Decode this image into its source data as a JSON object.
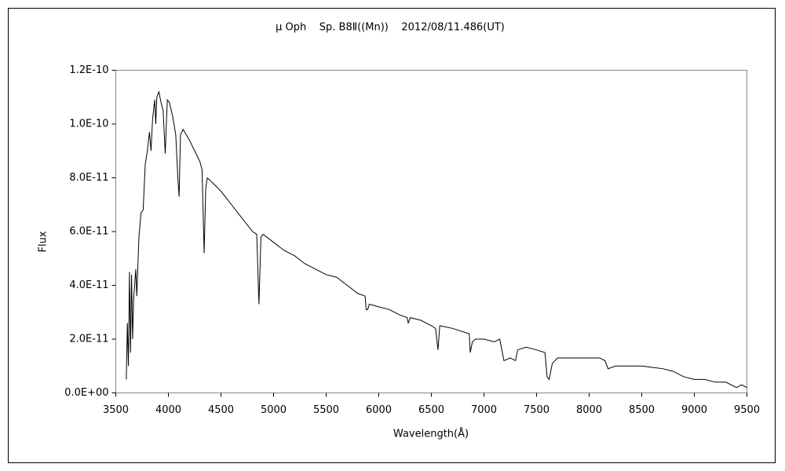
{
  "chart_data": {
    "type": "line",
    "title": "μ Oph    Sp. B8Ⅱ((Mn))    2012/08/11.486(UT)",
    "x_label": "Wavelength(Å)",
    "y_label": "Flux",
    "color": "#000000",
    "grid": false,
    "xlim": [
      3500,
      9500
    ],
    "xticks": [
      3500,
      4000,
      4500,
      5000,
      5500,
      6000,
      6500,
      7000,
      7500,
      8000,
      8500,
      9000,
      9500
    ],
    "ylim": [
      0,
      1.2e-10
    ],
    "yticks": [
      {
        "value": 0,
        "label": "0.0E+00"
      },
      {
        "value": 2e-11,
        "label": "2.0E-11"
      },
      {
        "value": 4e-11,
        "label": "4.0E-11"
      },
      {
        "value": 6e-11,
        "label": "6.0E-11"
      },
      {
        "value": 8e-11,
        "label": "8.0E-11"
      },
      {
        "value": 1e-10,
        "label": "1.0E-10"
      },
      {
        "value": 1.2e-10,
        "label": "1.2E-10"
      }
    ],
    "x": [
      3600,
      3610,
      3620,
      3630,
      3640,
      3650,
      3660,
      3670,
      3690,
      3700,
      3720,
      3740,
      3760,
      3780,
      3800,
      3820,
      3835,
      3850,
      3870,
      3880,
      3890,
      3910,
      3930,
      3950,
      3970,
      3990,
      4010,
      4040,
      4070,
      4090,
      4102,
      4115,
      4140,
      4200,
      4250,
      4300,
      4320,
      4340,
      4355,
      4370,
      4450,
      4500,
      4600,
      4700,
      4800,
      4840,
      4861,
      4880,
      4900,
      5000,
      5100,
      5200,
      5300,
      5400,
      5500,
      5600,
      5700,
      5800,
      5870,
      5880,
      5895,
      5910,
      6000,
      6100,
      6200,
      6270,
      6280,
      6300,
      6400,
      6500,
      6540,
      6563,
      6580,
      6700,
      6860,
      6870,
      6890,
      6920,
      7000,
      7100,
      7150,
      7190,
      7250,
      7300,
      7320,
      7400,
      7500,
      7580,
      7600,
      7620,
      7650,
      7700,
      7800,
      7900,
      8000,
      8100,
      8150,
      8180,
      8250,
      8400,
      8500,
      8600,
      8700,
      8800,
      8900,
      9000,
      9100,
      9200,
      9300,
      9400,
      9450,
      9500
    ],
    "values": [
      5e-12,
      2.6e-11,
      1e-11,
      4.5e-11,
      1.5e-11,
      4.4e-11,
      2e-11,
      3.5e-11,
      4.6e-11,
      3.6e-11,
      5.8e-11,
      6.7e-11,
      6.8e-11,
      8.5e-11,
      9e-11,
      9.7e-11,
      9e-11,
      1.02e-10,
      1.09e-10,
      1e-10,
      1.1e-10,
      1.12e-10,
      1.08e-10,
      1.05e-10,
      8.9e-11,
      1.09e-10,
      1.08e-10,
      1.03e-10,
      9.6e-11,
      8e-11,
      7.3e-11,
      9.6e-11,
      9.8e-11,
      9.4e-11,
      9e-11,
      8.6e-11,
      8.3e-11,
      5.2e-11,
      7.6e-11,
      8e-11,
      7.7e-11,
      7.5e-11,
      7e-11,
      6.5e-11,
      6e-11,
      5.9e-11,
      3.3e-11,
      5.8e-11,
      5.9e-11,
      5.6e-11,
      5.3e-11,
      5.1e-11,
      4.8e-11,
      4.6e-11,
      4.4e-11,
      4.3e-11,
      4e-11,
      3.7e-11,
      3.6e-11,
      3.1e-11,
      3.1e-11,
      3.3e-11,
      3.2e-11,
      3.1e-11,
      2.9e-11,
      2.8e-11,
      2.6e-11,
      2.8e-11,
      2.7e-11,
      2.5e-11,
      2.4e-11,
      1.6e-11,
      2.5e-11,
      2.4e-11,
      2.2e-11,
      1.5e-11,
      1.9e-11,
      2e-11,
      2e-11,
      1.9e-11,
      2e-11,
      1.2e-11,
      1.3e-11,
      1.2e-11,
      1.6e-11,
      1.7e-11,
      1.6e-11,
      1.5e-11,
      6e-12,
      5e-12,
      1.1e-11,
      1.3e-11,
      1.3e-11,
      1.3e-11,
      1.3e-11,
      1.3e-11,
      1.2e-11,
      9e-12,
      1e-11,
      1e-11,
      1e-11,
      9.5e-12,
      9e-12,
      8e-12,
      6e-12,
      5e-12,
      5e-12,
      4e-12,
      4e-12,
      2e-12,
      3e-12,
      2e-12
    ]
  }
}
